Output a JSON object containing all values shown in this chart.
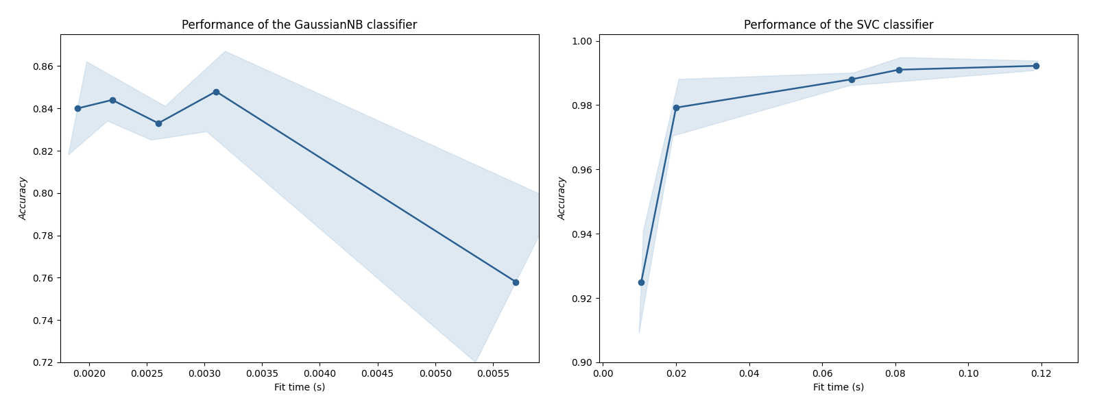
{
  "gnb": {
    "title": "Performance of the GaussianNB classifier",
    "xlabel": "Fit time (s)",
    "ylabel": "Accuracy",
    "fit_times": [
      0.0019,
      0.0022,
      0.0026,
      0.0031,
      0.0057
    ],
    "mean_scores": [
      0.84,
      0.844,
      0.833,
      0.848,
      0.758
    ],
    "score_upper": [
      0.862,
      0.854,
      0.841,
      0.867,
      0.796
    ],
    "score_lower": [
      0.818,
      0.834,
      0.825,
      0.829,
      0.72
    ],
    "time_std": [
      8e-05,
      4e-05,
      6e-05,
      8e-05,
      0.00035
    ],
    "ylim": [
      0.72,
      0.875
    ],
    "xlim": [
      0.00175,
      0.0059
    ]
  },
  "svc": {
    "title": "Performance of the SVC classifier",
    "xlabel": "Fit time (s)",
    "ylabel": "Accuracy",
    "fit_times": [
      0.0105,
      0.02,
      0.068,
      0.081,
      0.1185
    ],
    "mean_scores": [
      0.925,
      0.9792,
      0.988,
      0.991,
      0.9922
    ],
    "score_upper": [
      0.941,
      0.988,
      0.99,
      0.9948,
      0.9937
    ],
    "score_lower": [
      0.909,
      0.9704,
      0.986,
      0.9872,
      0.9907
    ],
    "time_std": [
      0.0006,
      0.0008,
      0.0006,
      0.0006,
      0.0006
    ],
    "ylim": [
      0.9,
      1.002
    ],
    "xlim": [
      -0.001,
      0.13
    ]
  },
  "line_color": "#2a5f8f",
  "fill_color": "#aec9e0",
  "fill_alpha": 0.4,
  "marker": "o",
  "markersize": 6,
  "linewidth": 1.8
}
